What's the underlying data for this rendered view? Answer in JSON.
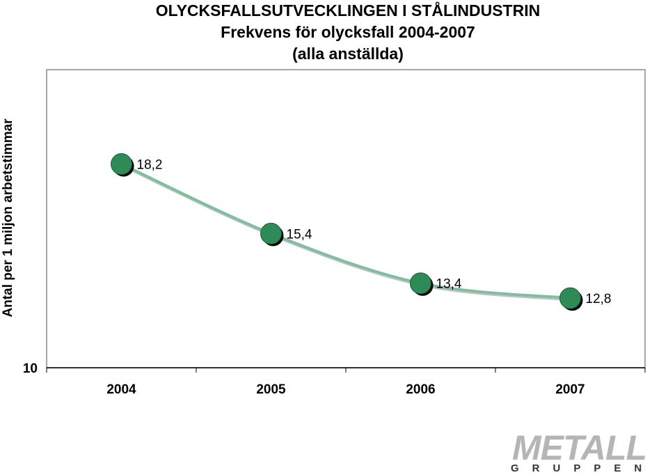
{
  "header": {
    "title": "OLYCKSFALLSUTVECKLINGEN I STÅLINDUSTRIN",
    "subtitle": "Frekvens för olycksfall 2004-2007",
    "subtitle2": "(alla anställda)"
  },
  "logo": {
    "main": "METALL",
    "sub": "GRUPPEN"
  },
  "colors": {
    "marker": "#2e8b57",
    "line": "#7fbf9f",
    "axis": "#000000"
  },
  "chart_data": {
    "type": "line",
    "ylabel": "Antal per 1 miljon arbetstimmar",
    "xlabel": "",
    "categories": [
      "2004",
      "2005",
      "2006",
      "2007"
    ],
    "values": [
      18.2,
      15.4,
      13.4,
      12.8
    ],
    "data_labels": [
      "18,2",
      "15,4",
      "13,4",
      "12,8"
    ],
    "y_tick_labels": [
      "10"
    ],
    "ylim": [
      10,
      22
    ],
    "grid": false,
    "legend": "none"
  }
}
